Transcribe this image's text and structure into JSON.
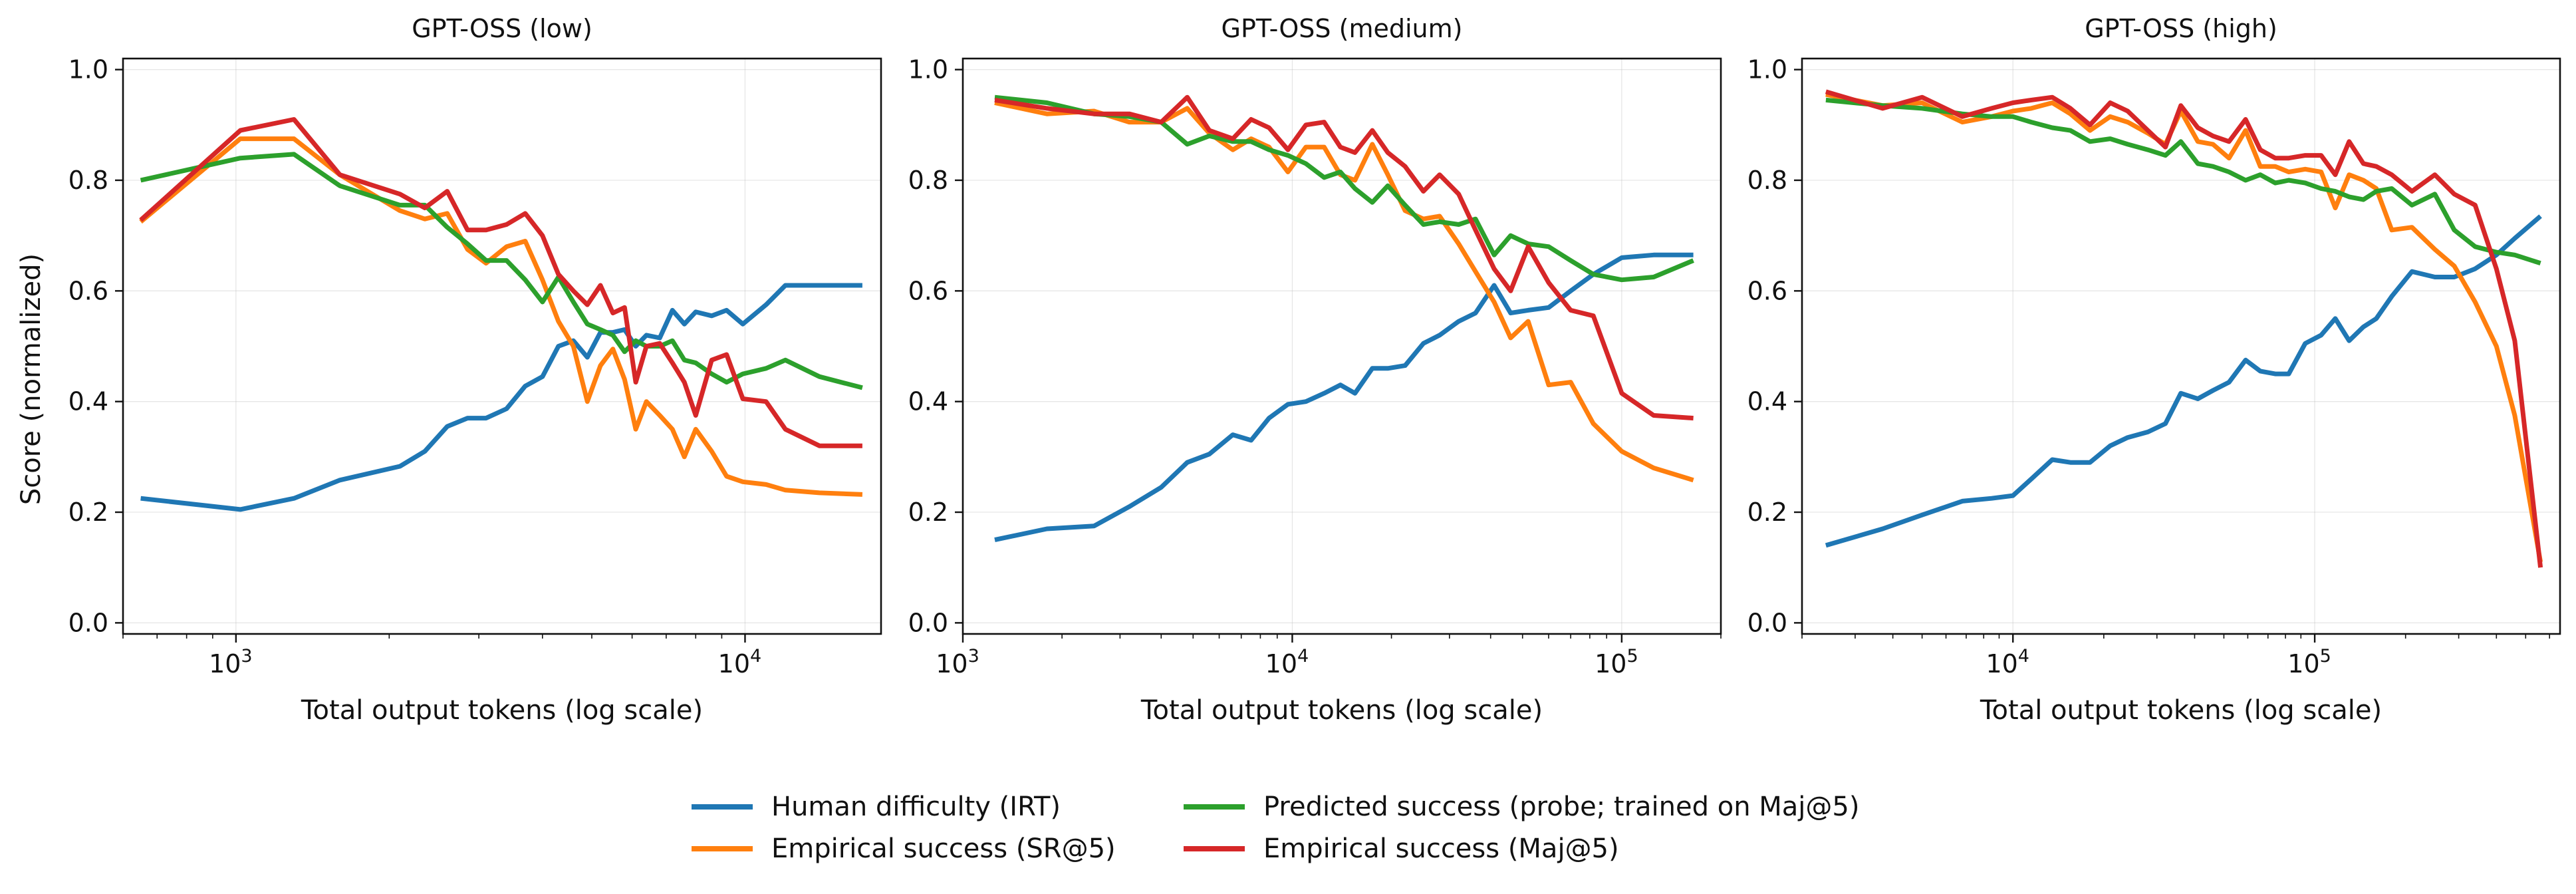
{
  "figure": {
    "y_axis_label": "Score (normalized)",
    "x_axis_label": "Total output tokens (log scale)",
    "legend": [
      {
        "label": "Human difficulty (IRT)",
        "color": "#1f77b4"
      },
      {
        "label": "Empirical success (SR@5)",
        "color": "#ff7f0e"
      },
      {
        "label": "Predicted success (probe; trained on Maj@5)",
        "color": "#2ca02c"
      },
      {
        "label": "Empirical success (Maj@5)",
        "color": "#d62728"
      }
    ]
  },
  "chart_data": [
    {
      "type": "line",
      "title": "GPT-OSS (low)",
      "xlabel": "Total output tokens (log scale)",
      "ylabel": "Score (normalized)",
      "xscale": "log",
      "xlim": [
        600,
        18500
      ],
      "ylim": [
        -0.02,
        1.02
      ],
      "yticks": [
        0.0,
        0.2,
        0.4,
        0.6,
        0.8,
        1.0
      ],
      "xticks": [
        {
          "base": "10",
          "exp": "3",
          "value": 1000
        },
        {
          "base": "10",
          "exp": "4",
          "value": 10000
        }
      ],
      "grid": true,
      "x": [
        650,
        1020,
        1300,
        1600,
        2100,
        2350,
        2600,
        2850,
        3100,
        3400,
        3700,
        4000,
        4300,
        4600,
        4900,
        5200,
        5500,
        5800,
        6100,
        6400,
        6800,
        7200,
        7600,
        8000,
        8600,
        9200,
        9900,
        11000,
        12000,
        14000,
        17000
      ],
      "series": [
        {
          "name": "Human difficulty (IRT)",
          "color": "#1f77b4",
          "values": [
            0.225,
            0.205,
            0.225,
            0.258,
            0.283,
            0.31,
            0.355,
            0.37,
            0.37,
            0.387,
            0.428,
            0.445,
            0.5,
            0.51,
            0.48,
            0.525,
            0.525,
            0.53,
            0.5,
            0.52,
            0.515,
            0.565,
            0.54,
            0.562,
            0.555,
            0.565,
            0.54,
            0.575,
            0.61,
            0.61,
            0.61
          ]
        },
        {
          "name": "Empirical success (SR@5)",
          "color": "#ff7f0e",
          "values": [
            0.725,
            0.875,
            0.875,
            0.81,
            0.745,
            0.73,
            0.74,
            0.675,
            0.65,
            0.68,
            0.69,
            0.62,
            0.545,
            0.5,
            0.4,
            0.465,
            0.495,
            0.44,
            0.35,
            0.4,
            0.375,
            0.35,
            0.3,
            0.35,
            0.31,
            0.265,
            0.255,
            0.25,
            0.24,
            0.235,
            0.232
          ]
        },
        {
          "name": "Predicted success (probe; trained on Maj@5)",
          "color": "#2ca02c",
          "values": [
            0.8,
            0.84,
            0.847,
            0.79,
            0.755,
            0.755,
            0.715,
            0.685,
            0.655,
            0.655,
            0.62,
            0.58,
            0.625,
            0.58,
            0.54,
            0.53,
            0.52,
            0.49,
            0.51,
            0.5,
            0.5,
            0.51,
            0.475,
            0.47,
            0.45,
            0.435,
            0.45,
            0.46,
            0.475,
            0.445,
            0.425
          ]
        },
        {
          "name": "Empirical success (Maj@5)",
          "color": "#d62728",
          "values": [
            0.728,
            0.89,
            0.91,
            0.81,
            0.775,
            0.75,
            0.78,
            0.71,
            0.71,
            0.72,
            0.74,
            0.7,
            0.63,
            0.6,
            0.575,
            0.61,
            0.56,
            0.57,
            0.435,
            0.5,
            0.505,
            0.47,
            0.435,
            0.375,
            0.475,
            0.485,
            0.405,
            0.4,
            0.35,
            0.32,
            0.32
          ]
        }
      ]
    },
    {
      "type": "line",
      "title": "GPT-OSS (medium)",
      "xlabel": "Total output tokens (log scale)",
      "ylabel": "",
      "xscale": "log",
      "xlim": [
        1000,
        200000
      ],
      "ylim": [
        -0.02,
        1.02
      ],
      "yticks": [
        0.0,
        0.2,
        0.4,
        0.6,
        0.8,
        1.0
      ],
      "xticks": [
        {
          "base": "10",
          "exp": "3",
          "value": 1000
        },
        {
          "base": "10",
          "exp": "4",
          "value": 10000
        },
        {
          "base": "10",
          "exp": "5",
          "value": 100000
        }
      ],
      "grid": true,
      "x": [
        1250,
        1800,
        2500,
        3200,
        4000,
        4800,
        5600,
        6600,
        7500,
        8500,
        9700,
        11000,
        12500,
        14000,
        15500,
        17500,
        19500,
        22000,
        25000,
        28000,
        32000,
        36000,
        41000,
        46000,
        52000,
        60000,
        70000,
        82000,
        100000,
        125000,
        165000
      ],
      "series": [
        {
          "name": "Human difficulty (IRT)",
          "color": "#1f77b4",
          "values": [
            0.15,
            0.17,
            0.175,
            0.21,
            0.245,
            0.29,
            0.305,
            0.34,
            0.33,
            0.37,
            0.395,
            0.4,
            0.415,
            0.43,
            0.415,
            0.46,
            0.46,
            0.465,
            0.505,
            0.52,
            0.545,
            0.56,
            0.61,
            0.56,
            0.565,
            0.57,
            0.6,
            0.63,
            0.66,
            0.665,
            0.665
          ]
        },
        {
          "name": "Empirical success (SR@5)",
          "color": "#ff7f0e",
          "values": [
            0.94,
            0.92,
            0.925,
            0.905,
            0.905,
            0.93,
            0.885,
            0.855,
            0.875,
            0.86,
            0.815,
            0.86,
            0.86,
            0.81,
            0.8,
            0.865,
            0.81,
            0.745,
            0.73,
            0.735,
            0.685,
            0.635,
            0.58,
            0.515,
            0.545,
            0.43,
            0.435,
            0.36,
            0.31,
            0.28,
            0.258
          ]
        },
        {
          "name": "Predicted success (probe; trained on Maj@5)",
          "color": "#2ca02c",
          "values": [
            0.95,
            0.94,
            0.92,
            0.915,
            0.905,
            0.865,
            0.88,
            0.87,
            0.87,
            0.855,
            0.845,
            0.83,
            0.805,
            0.815,
            0.785,
            0.76,
            0.79,
            0.755,
            0.72,
            0.725,
            0.72,
            0.73,
            0.665,
            0.7,
            0.685,
            0.68,
            0.655,
            0.63,
            0.62,
            0.625,
            0.655
          ]
        },
        {
          "name": "Empirical success (Maj@5)",
          "color": "#d62728",
          "values": [
            0.945,
            0.93,
            0.92,
            0.92,
            0.905,
            0.95,
            0.89,
            0.875,
            0.91,
            0.895,
            0.855,
            0.9,
            0.905,
            0.86,
            0.85,
            0.89,
            0.85,
            0.825,
            0.78,
            0.81,
            0.775,
            0.71,
            0.64,
            0.6,
            0.68,
            0.615,
            0.565,
            0.555,
            0.415,
            0.375,
            0.37
          ]
        }
      ]
    },
    {
      "type": "line",
      "title": "GPT-OSS (high)",
      "xlabel": "Total output tokens (log scale)",
      "ylabel": "",
      "xscale": "log",
      "xlim": [
        2000,
        650000
      ],
      "ylim": [
        -0.02,
        1.02
      ],
      "yticks": [
        0.0,
        0.2,
        0.4,
        0.6,
        0.8,
        1.0
      ],
      "xticks": [
        {
          "base": "10",
          "exp": "4",
          "value": 10000
        },
        {
          "base": "10",
          "exp": "5",
          "value": 100000
        }
      ],
      "grid": true,
      "x": [
        2400,
        3700,
        5000,
        6800,
        8500,
        10000,
        11500,
        13500,
        15500,
        18000,
        21000,
        24000,
        28000,
        32000,
        36000,
        41000,
        46000,
        52000,
        59000,
        66000,
        74000,
        82000,
        93000,
        105000,
        117000,
        130000,
        145000,
        160000,
        180000,
        210000,
        250000,
        290000,
        340000,
        400000,
        460000,
        560000
      ],
      "series": [
        {
          "name": "Human difficulty (IRT)",
          "color": "#1f77b4",
          "values": [
            0.14,
            0.17,
            0.195,
            0.22,
            0.225,
            0.23,
            0.26,
            0.295,
            0.29,
            0.29,
            0.32,
            0.335,
            0.345,
            0.36,
            0.415,
            0.405,
            0.42,
            0.435,
            0.475,
            0.455,
            0.45,
            0.45,
            0.505,
            0.52,
            0.55,
            0.51,
            0.535,
            0.55,
            0.59,
            0.635,
            0.625,
            0.625,
            0.64,
            0.665,
            0.695,
            0.735
          ]
        },
        {
          "name": "Empirical success (SR@5)",
          "color": "#ff7f0e",
          "values": [
            0.955,
            0.935,
            0.94,
            0.905,
            0.915,
            0.925,
            0.93,
            0.94,
            0.92,
            0.89,
            0.915,
            0.905,
            0.885,
            0.865,
            0.925,
            0.87,
            0.865,
            0.84,
            0.89,
            0.825,
            0.825,
            0.815,
            0.82,
            0.815,
            0.75,
            0.81,
            0.8,
            0.785,
            0.71,
            0.715,
            0.675,
            0.645,
            0.58,
            0.5,
            0.375,
            0.11
          ]
        },
        {
          "name": "Predicted success (probe; trained on Maj@5)",
          "color": "#2ca02c",
          "values": [
            0.945,
            0.935,
            0.93,
            0.92,
            0.915,
            0.915,
            0.905,
            0.895,
            0.89,
            0.87,
            0.875,
            0.865,
            0.855,
            0.845,
            0.87,
            0.83,
            0.825,
            0.815,
            0.8,
            0.81,
            0.795,
            0.8,
            0.795,
            0.785,
            0.78,
            0.77,
            0.765,
            0.78,
            0.785,
            0.755,
            0.775,
            0.71,
            0.68,
            0.67,
            0.665,
            0.65
          ]
        },
        {
          "name": "Empirical success (Maj@5)",
          "color": "#d62728",
          "values": [
            0.96,
            0.93,
            0.95,
            0.915,
            0.93,
            0.94,
            0.945,
            0.95,
            0.93,
            0.9,
            0.94,
            0.925,
            0.89,
            0.86,
            0.935,
            0.895,
            0.88,
            0.87,
            0.91,
            0.855,
            0.84,
            0.84,
            0.845,
            0.845,
            0.81,
            0.87,
            0.83,
            0.825,
            0.81,
            0.78,
            0.81,
            0.775,
            0.755,
            0.64,
            0.51,
            0.1
          ]
        }
      ]
    }
  ]
}
